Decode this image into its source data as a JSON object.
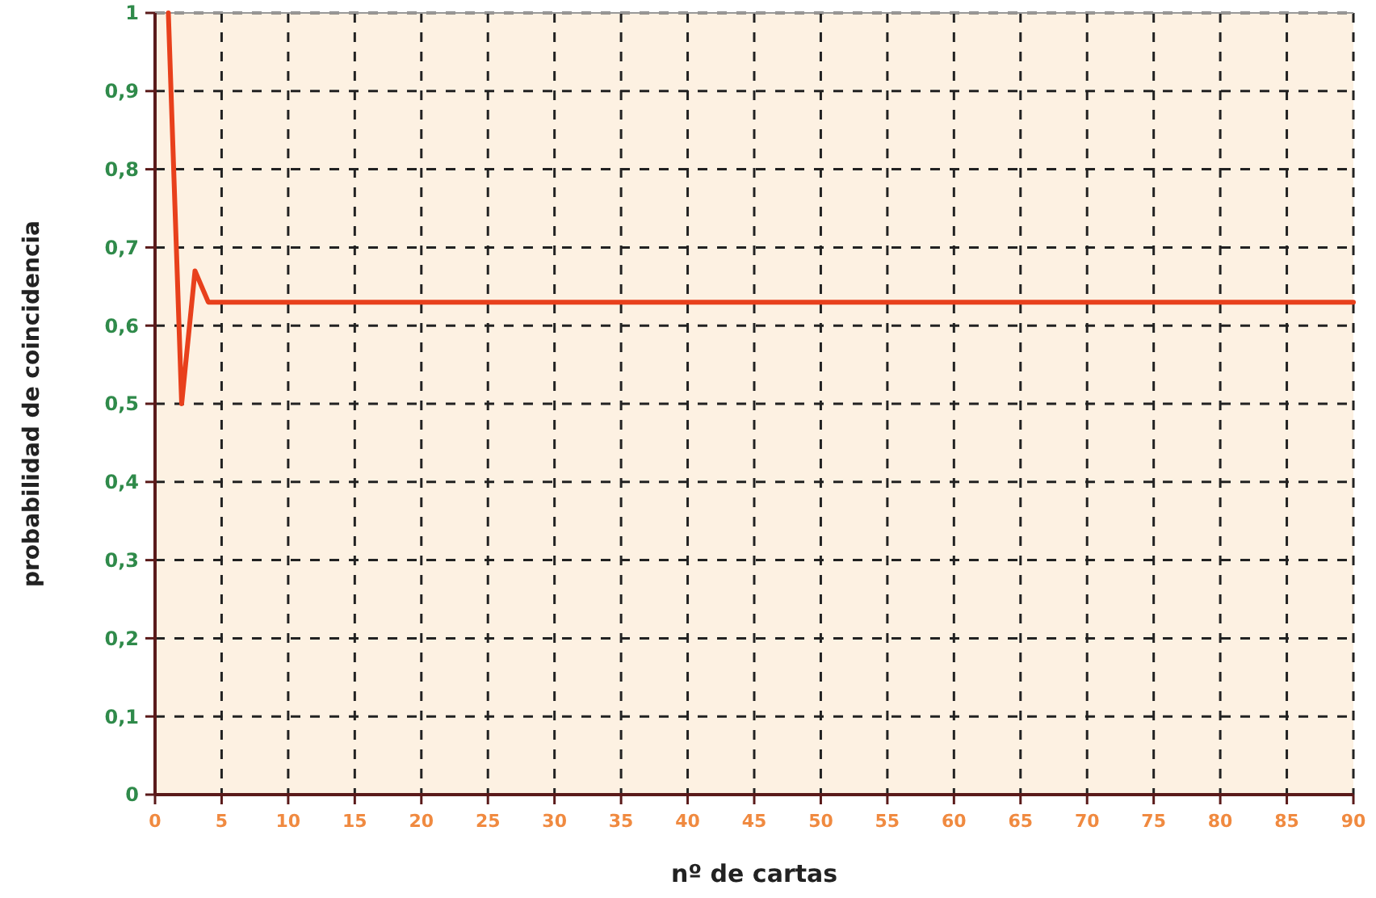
{
  "chart_data": {
    "type": "line",
    "xlabel": "nº de cartas",
    "ylabel": "probabilidad de coincidencia",
    "x": [
      1,
      2,
      3,
      4,
      5,
      6,
      90
    ],
    "series": [
      {
        "color": "#e8401c",
        "values": [
          1,
          0.5,
          0.67,
          0.63,
          0.63,
          0.63,
          0.63
        ]
      }
    ],
    "xlim": [
      0,
      90
    ],
    "xticks": [
      0,
      5,
      10,
      15,
      20,
      25,
      30,
      35,
      40,
      45,
      50,
      55,
      60,
      65,
      70,
      75,
      80,
      85,
      90
    ],
    "ylim": [
      0,
      1
    ],
    "yticks": [
      0,
      {
        "value": 0.1,
        "label": "0,1"
      },
      {
        "value": 0.2,
        "label": "0,2"
      },
      {
        "value": 0.3,
        "label": "0,3"
      },
      {
        "value": 0.4,
        "label": "0,4"
      },
      {
        "value": 0.5,
        "label": "0,5"
      },
      {
        "value": 0.6,
        "label": "0,6"
      },
      {
        "value": 0.7,
        "label": "0,7"
      },
      {
        "value": 0.8,
        "label": "0,8"
      },
      {
        "value": 0.9,
        "label": "0,9"
      },
      1
    ],
    "grid": true,
    "line_style": "solid",
    "marker": "none"
  }
}
